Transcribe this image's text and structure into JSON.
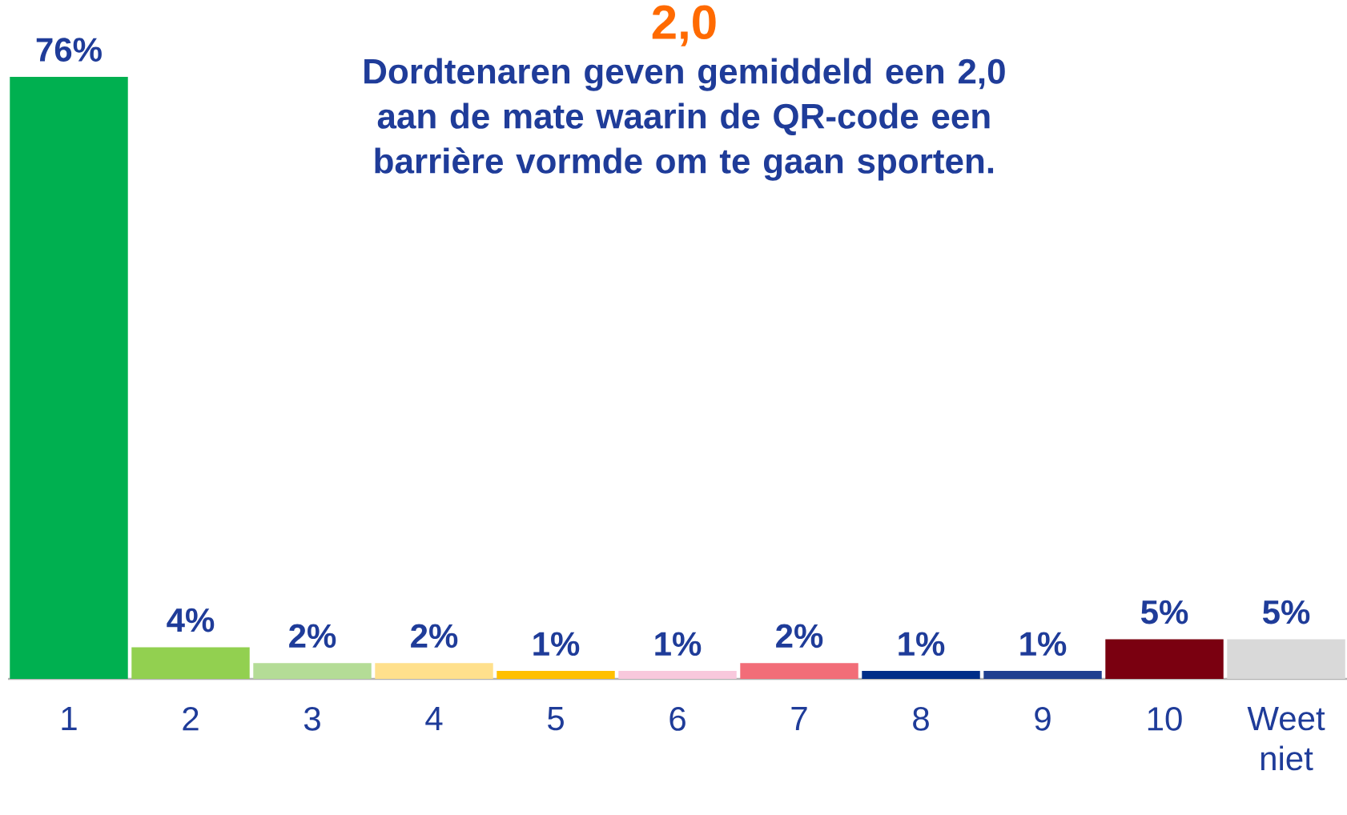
{
  "chart_data": {
    "type": "bar",
    "title": "Dordtenaren geven gemiddeld een 2,0 aan de mate waarin de QR-code een barrière vormde om te gaan sporten.",
    "annotations": [
      "2,0"
    ],
    "categories": [
      "1",
      "2",
      "3",
      "4",
      "5",
      "6",
      "7",
      "8",
      "9",
      "10",
      "Weet niet"
    ],
    "values": [
      76,
      4,
      2,
      2,
      1,
      1,
      2,
      1,
      1,
      5,
      5
    ],
    "colors": [
      "#00b050",
      "#92d050",
      "#b4dc96",
      "#ffe08c",
      "#ffc000",
      "#f8c8dc",
      "#f26d78",
      "#002d88",
      "#1f3f8f",
      "#7a0010",
      "#d9d9d9"
    ],
    "value_labels": [
      "76%",
      "4%",
      "2%",
      "2%",
      "1%",
      "1%",
      "2%",
      "1%",
      "1%",
      "5%",
      "5%"
    ]
  }
}
